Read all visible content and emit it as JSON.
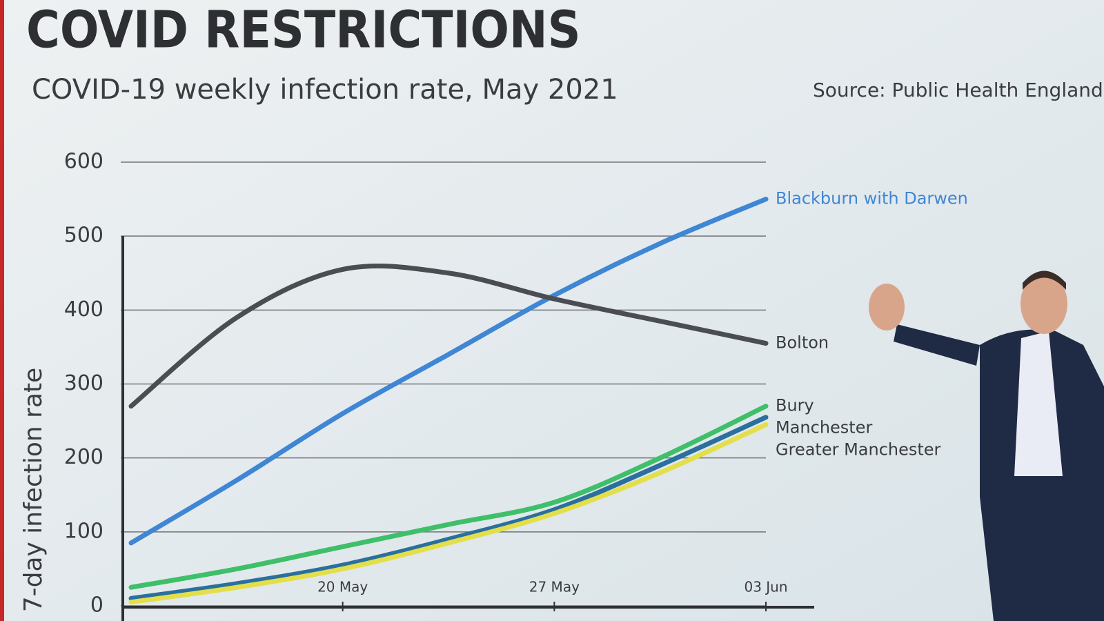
{
  "chart_data": {
    "type": "line",
    "title": "COVID RESTRICTIONS",
    "subtitle": "COVID-19 weekly infection rate, May 2021",
    "source": "Source: Public Health England",
    "y_label": "7-day infection rate",
    "categories": [
      null,
      null,
      "20 May",
      null,
      "27 May",
      null,
      "03 Jun"
    ],
    "series": [
      {
        "name": "Blackburn with Darwen",
        "color": "#3f86d4",
        "values": [
          85,
          170,
          260,
          340,
          420,
          490,
          550
        ]
      },
      {
        "name": "Bolton",
        "color": "#4a4d52",
        "values": [
          270,
          390,
          455,
          450,
          415,
          385,
          355
        ]
      },
      {
        "name": "Manchester",
        "color": "#2a6f9e",
        "values": [
          10,
          30,
          55,
          90,
          130,
          190,
          255
        ]
      },
      {
        "name": "Bury",
        "color": "#3fbf6a",
        "values": [
          25,
          50,
          80,
          110,
          140,
          200,
          270
        ]
      },
      {
        "name": "Greater Manchester",
        "color": "#e3df4a",
        "values": [
          5,
          25,
          50,
          85,
          125,
          180,
          245
        ]
      }
    ],
    "ylim": [
      0,
      600
    ],
    "yticks": [
      0,
      100,
      200,
      300,
      400,
      500,
      600
    ],
    "grid": true
  }
}
